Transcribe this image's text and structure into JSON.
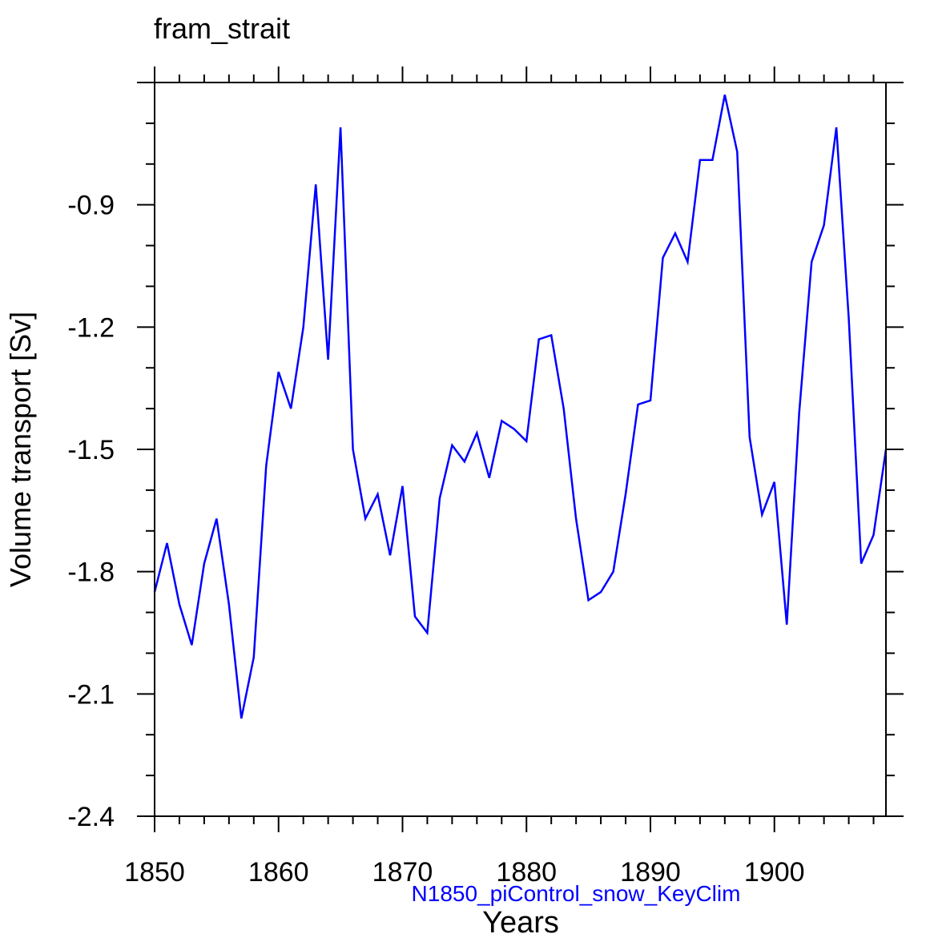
{
  "chart_data": {
    "type": "line",
    "title": "fram_strait",
    "xlabel": "Years",
    "ylabel": "Volume transport [Sv]",
    "legend_text": "N1850_piControl_snow_KeyClim",
    "xlim": [
      1850,
      1909
    ],
    "ylim": [
      -2.4,
      -0.6
    ],
    "xticks": [
      1850,
      1860,
      1870,
      1880,
      1890,
      1900
    ],
    "xtick_labels": [
      "1850",
      "1860",
      "1870",
      "1880",
      "1890",
      "1900"
    ],
    "yticks": [
      -2.4,
      -2.1,
      -1.8,
      -1.5,
      -1.2,
      -0.9
    ],
    "ytick_labels": [
      "-2.4",
      "-2.1",
      "-1.8",
      "-1.5",
      "-1.2",
      "-0.9"
    ],
    "series": [
      {
        "name": "N1850_piControl_snow_KeyClim",
        "color": "#0000ff",
        "x": [
          1850,
          1851,
          1852,
          1853,
          1854,
          1855,
          1856,
          1857,
          1858,
          1859,
          1860,
          1861,
          1862,
          1863,
          1864,
          1865,
          1866,
          1867,
          1868,
          1869,
          1870,
          1871,
          1872,
          1873,
          1874,
          1875,
          1876,
          1877,
          1878,
          1879,
          1880,
          1881,
          1882,
          1883,
          1884,
          1885,
          1886,
          1887,
          1888,
          1889,
          1890,
          1891,
          1892,
          1893,
          1894,
          1895,
          1896,
          1897,
          1898,
          1899,
          1900,
          1901,
          1902,
          1903,
          1904,
          1905,
          1906,
          1907,
          1908,
          1909
        ],
        "values": [
          -1.85,
          -1.73,
          -1.88,
          -1.98,
          -1.78,
          -1.67,
          -1.88,
          -2.16,
          -2.01,
          -1.54,
          -1.31,
          -1.4,
          -1.2,
          -0.85,
          -1.28,
          -0.71,
          -1.5,
          -1.67,
          -1.61,
          -1.76,
          -1.59,
          -1.91,
          -1.95,
          -1.62,
          -1.49,
          -1.53,
          -1.46,
          -1.57,
          -1.43,
          -1.45,
          -1.48,
          -1.23,
          -1.22,
          -1.4,
          -1.67,
          -1.87,
          -1.85,
          -1.8,
          -1.61,
          -1.39,
          -1.38,
          -1.03,
          -0.97,
          -1.04,
          -0.79,
          -0.79,
          -0.63,
          -0.77,
          -1.47,
          -1.66,
          -1.58,
          -1.93,
          -1.41,
          -1.04,
          -0.95,
          -0.71,
          -1.18,
          -1.78,
          -1.71,
          -1.5
        ]
      }
    ]
  }
}
